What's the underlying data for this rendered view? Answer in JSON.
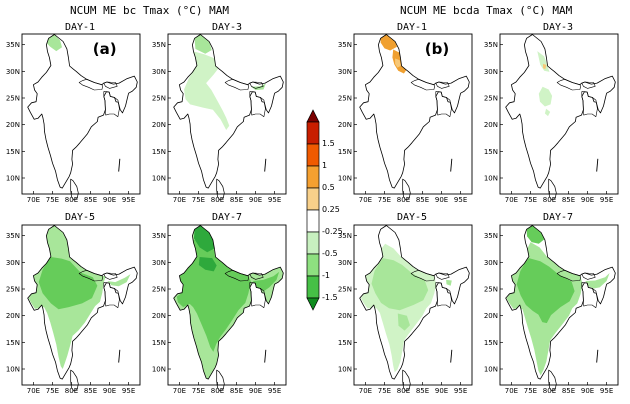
{
  "titles": {
    "left": "NCUM ME bc Tmax (°C) MAM",
    "right": "NCUM ME bcda Tmax (°C) MAM"
  },
  "panel_letters": {
    "left": "(a)",
    "right": "(b)"
  },
  "axis_labels": {
    "lat": [
      "35N",
      "30N",
      "25N",
      "20N",
      "15N",
      "10N"
    ],
    "lon": [
      "70E",
      "75E",
      "80E",
      "85E",
      "90E",
      "95E"
    ]
  },
  "legend": {
    "labels": [
      "1.5",
      "1",
      "0.5",
      "0.25",
      "-0.25",
      "-0.5",
      "-1",
      "-1.5"
    ],
    "colors": [
      "#7a0000",
      "#c81e00",
      "#f05a00",
      "#f5a030",
      "#f8d08a",
      "#ffffff",
      "#c8f0c0",
      "#8ee080",
      "#46c046",
      "#0f8c1e"
    ]
  },
  "colors": {
    "very_light": "#d0f3c6",
    "light": "#a8e69a",
    "medium": "#66cc5a",
    "dark": "#2ea93c",
    "orange": "#f0a030",
    "orange_light": "#f7c878"
  },
  "panels": [
    {
      "id": "a1",
      "label": "DAY-1",
      "fill": "a1"
    },
    {
      "id": "a3",
      "label": "DAY-3",
      "fill": "a3"
    },
    {
      "id": "a5",
      "label": "DAY-5",
      "fill": "a5"
    },
    {
      "id": "a7",
      "label": "DAY-7",
      "fill": "a7"
    },
    {
      "id": "b1",
      "label": "DAY-1",
      "fill": "b1"
    },
    {
      "id": "b3",
      "label": "DAY-3",
      "fill": "b3"
    },
    {
      "id": "b5",
      "label": "DAY-5",
      "fill": "b5"
    },
    {
      "id": "b7",
      "label": "DAY-7",
      "fill": "b7"
    }
  ]
}
